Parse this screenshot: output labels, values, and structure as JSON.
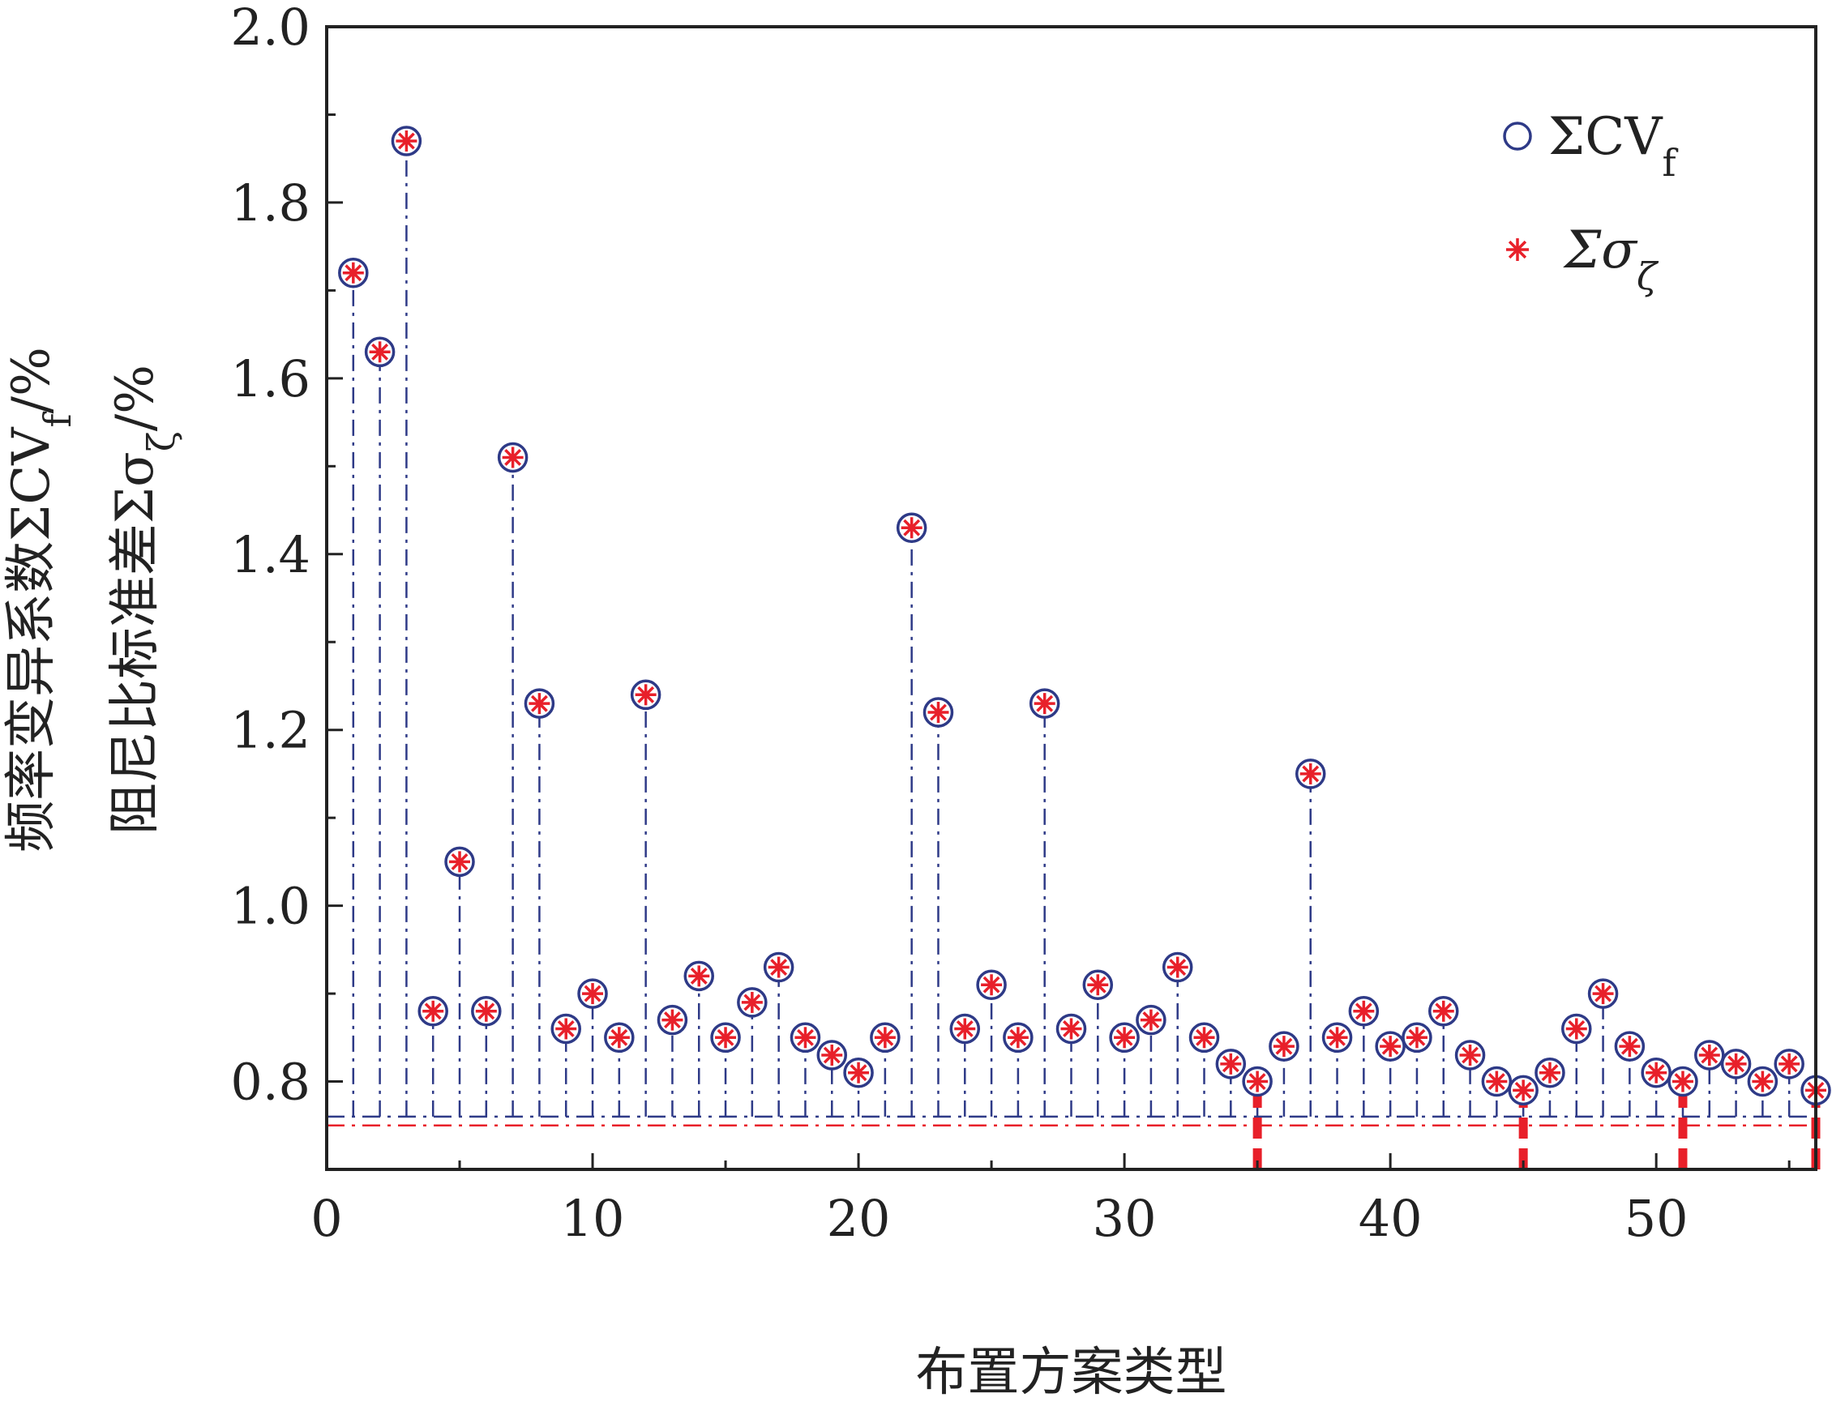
{
  "chart_data": {
    "type": "scatter",
    "title": "",
    "xlabel": "布置方案类型",
    "ylabel": {
      "line1": {
        "prefix": "频率变异系数ΣCV",
        "sub": "f",
        "suffix": "/%"
      },
      "line2": {
        "prefix": "阻尼比标准差Σσ",
        "sub": "ζ",
        "suffix": "/%"
      }
    },
    "xlim": [
      0,
      56
    ],
    "ylim": [
      0.7,
      2.0
    ],
    "xticks": [
      0,
      10,
      20,
      30,
      40,
      50
    ],
    "xtick_labels": [
      "0",
      "10",
      "20",
      "30",
      "40",
      "50"
    ],
    "yticks": [
      0.8,
      1.0,
      1.2,
      1.4,
      1.6,
      1.8,
      2.0
    ],
    "ytick_labels": [
      "0.8",
      "1.0",
      "1.2",
      "1.4",
      "1.6",
      "1.8",
      "2.0"
    ],
    "grid": false,
    "legend_position": "top-right",
    "x": [
      1,
      2,
      3,
      4,
      5,
      6,
      7,
      8,
      9,
      10,
      11,
      12,
      13,
      14,
      15,
      16,
      17,
      18,
      19,
      20,
      21,
      22,
      23,
      24,
      25,
      26,
      27,
      28,
      29,
      30,
      31,
      32,
      33,
      34,
      35,
      36,
      37,
      38,
      39,
      40,
      41,
      42,
      43,
      44,
      45,
      46,
      47,
      48,
      49,
      50,
      51,
      52,
      53,
      54,
      55,
      56
    ],
    "series": [
      {
        "name": "ΣCV",
        "name_sub": "f",
        "marker": "circle",
        "color": "#2e3a87",
        "values": [
          1.72,
          1.63,
          1.87,
          0.88,
          1.05,
          0.88,
          1.51,
          1.23,
          0.86,
          0.9,
          0.85,
          1.24,
          0.87,
          0.92,
          0.85,
          0.89,
          0.93,
          0.85,
          0.83,
          0.81,
          0.85,
          1.43,
          1.22,
          0.86,
          0.91,
          0.85,
          1.23,
          0.86,
          0.91,
          0.85,
          0.87,
          0.93,
          0.85,
          0.82,
          0.8,
          0.84,
          1.15,
          0.85,
          0.88,
          0.84,
          0.85,
          0.88,
          0.83,
          0.8,
          0.79,
          0.81,
          0.86,
          0.9,
          0.84,
          0.81,
          0.8,
          0.83,
          0.82,
          0.8,
          0.82,
          0.79
        ]
      },
      {
        "name": "Σσ",
        "name_sub": "ζ",
        "marker": "asterisk",
        "color": "#e8202a",
        "values": [
          1.72,
          1.63,
          1.87,
          0.88,
          1.05,
          0.88,
          1.51,
          1.23,
          0.86,
          0.9,
          0.85,
          1.24,
          0.87,
          0.92,
          0.85,
          0.89,
          0.93,
          0.85,
          0.83,
          0.81,
          0.85,
          1.43,
          1.22,
          0.86,
          0.91,
          0.85,
          1.23,
          0.86,
          0.91,
          0.85,
          0.87,
          0.93,
          0.85,
          0.82,
          0.8,
          0.84,
          1.15,
          0.85,
          0.88,
          0.84,
          0.85,
          0.88,
          0.83,
          0.8,
          0.79,
          0.81,
          0.86,
          0.9,
          0.84,
          0.81,
          0.8,
          0.83,
          0.82,
          0.8,
          0.82,
          0.79
        ]
      }
    ],
    "stem_base": 0.76,
    "threshold_line": 0.75,
    "highlighted_x": [
      35,
      45,
      51,
      56
    ],
    "colors": {
      "stem": "#2e3a87",
      "threshold": "#e8202a",
      "highlight": "#e8202a",
      "axis": "#222222"
    }
  }
}
